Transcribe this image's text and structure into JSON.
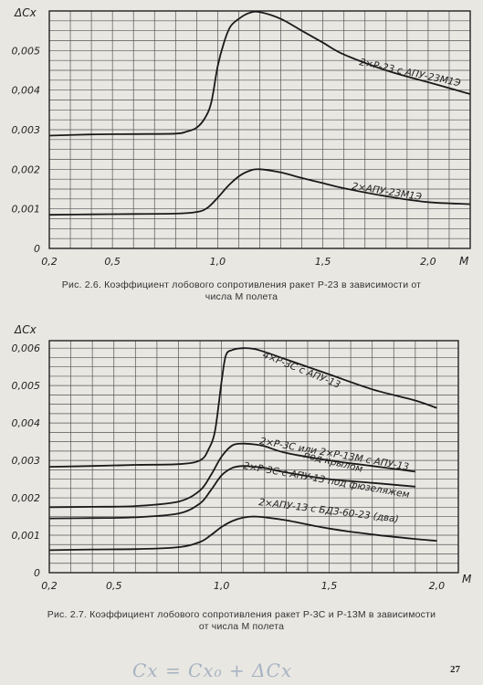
{
  "chart_data": [
    {
      "type": "line",
      "title": "Рис. 2.6. Коэффициент лобового сопротивления ракет Р-23 в зависимости от числа М полета",
      "ylabel": "ΔCx",
      "xlabel": "M",
      "xlim": [
        0.2,
        2.2
      ],
      "ylim": [
        0,
        0.006
      ],
      "x_ticks": [
        "0,2",
        "0,5",
        "1,0",
        "1,5",
        "2,0"
      ],
      "x_tick_values": [
        0.2,
        0.5,
        1.0,
        1.5,
        2.0
      ],
      "y_ticks": [
        "0",
        "0,001",
        "0,002",
        "0,003",
        "0,004",
        "0,005"
      ],
      "y_tick_values": [
        0,
        0.001,
        0.002,
        0.003,
        0.004,
        0.005
      ],
      "grid": true,
      "series": [
        {
          "name": "2×Р-23 с АПУ-23М1Э",
          "x": [
            0.2,
            0.4,
            0.6,
            0.8,
            0.85,
            0.9,
            0.94,
            0.97,
            1.0,
            1.03,
            1.06,
            1.1,
            1.15,
            1.2,
            1.3,
            1.4,
            1.5,
            1.6,
            1.8,
            2.0,
            2.2
          ],
          "y": [
            0.00285,
            0.00288,
            0.00289,
            0.0029,
            0.00295,
            0.00305,
            0.0033,
            0.0037,
            0.0046,
            0.0052,
            0.0056,
            0.0058,
            0.00595,
            0.00597,
            0.0058,
            0.0055,
            0.0052,
            0.0049,
            0.0045,
            0.0042,
            0.0039
          ]
        },
        {
          "name": "2×АПУ-23М1Э",
          "x": [
            0.2,
            0.4,
            0.6,
            0.8,
            0.9,
            0.95,
            1.0,
            1.05,
            1.1,
            1.15,
            1.2,
            1.3,
            1.4,
            1.5,
            1.6,
            1.8,
            2.0,
            2.2
          ],
          "y": [
            0.00085,
            0.00086,
            0.00087,
            0.00088,
            0.00092,
            0.00102,
            0.00128,
            0.00158,
            0.00182,
            0.00196,
            0.002,
            0.00192,
            0.00178,
            0.00165,
            0.00152,
            0.00132,
            0.00117,
            0.00112
          ]
        }
      ],
      "annotations": [
        "2×Р-23 с АПУ-23М1Э",
        "2×АПУ-23М1Э"
      ]
    },
    {
      "type": "line",
      "title": "Рис. 2.7. Коэффициент лобового сопротивления ракет Р-3С и Р-13М в зависимости от числа М полета",
      "ylabel": "ΔCx",
      "xlabel": "M",
      "xlim": [
        0.2,
        2.1
      ],
      "ylim": [
        0,
        0.0062
      ],
      "x_ticks": [
        "0,2",
        "0,5",
        "1,0",
        "1,5",
        "2,0"
      ],
      "x_tick_values": [
        0.2,
        0.5,
        1.0,
        1.5,
        2.0
      ],
      "y_ticks": [
        "0",
        "0,001",
        "0,002",
        "0,003",
        "0,004",
        "0,005",
        "0,006"
      ],
      "y_tick_values": [
        0,
        0.001,
        0.002,
        0.003,
        0.004,
        0.005,
        0.006
      ],
      "grid": true,
      "series": [
        {
          "name": "4×Р-3С с АПУ-13",
          "x": [
            0.2,
            0.4,
            0.6,
            0.8,
            0.9,
            0.94,
            0.97,
            1.0,
            1.02,
            1.05,
            1.1,
            1.15,
            1.2,
            1.3,
            1.5,
            1.7,
            1.9,
            2.0
          ],
          "y": [
            0.00283,
            0.00285,
            0.00288,
            0.0029,
            0.003,
            0.0033,
            0.0038,
            0.0051,
            0.0058,
            0.00595,
            0.006,
            0.00598,
            0.0059,
            0.0057,
            0.0053,
            0.0049,
            0.0046,
            0.0044
          ]
        },
        {
          "name": "2×Р-3С или 2×Р-13М с АПУ-13 под крылом",
          "x": [
            0.2,
            0.4,
            0.6,
            0.8,
            0.9,
            0.95,
            1.0,
            1.05,
            1.1,
            1.15,
            1.2,
            1.3,
            1.5,
            1.7,
            1.9
          ],
          "y": [
            0.00175,
            0.00176,
            0.00178,
            0.0019,
            0.0022,
            0.0026,
            0.0031,
            0.0034,
            0.00345,
            0.00343,
            0.00338,
            0.0032,
            0.003,
            0.00285,
            0.0027
          ]
        },
        {
          "name": "2×Р-3С с АПУ-13 под фюзеляжем",
          "x": [
            0.2,
            0.4,
            0.6,
            0.8,
            0.9,
            0.95,
            1.0,
            1.05,
            1.1,
            1.15,
            1.2,
            1.3,
            1.5,
            1.7,
            1.9
          ],
          "y": [
            0.00145,
            0.00146,
            0.00148,
            0.00158,
            0.00185,
            0.0022,
            0.0026,
            0.0028,
            0.00285,
            0.00283,
            0.0028,
            0.00268,
            0.0025,
            0.0024,
            0.0023
          ]
        },
        {
          "name": "2×АПУ-13 с БДЗ-60-23 (два)",
          "x": [
            0.2,
            0.4,
            0.6,
            0.8,
            0.9,
            0.95,
            1.0,
            1.05,
            1.1,
            1.15,
            1.2,
            1.3,
            1.5,
            1.7,
            1.9,
            2.0
          ],
          "y": [
            0.0006,
            0.00062,
            0.00063,
            0.00068,
            0.00082,
            0.001,
            0.00122,
            0.00138,
            0.00147,
            0.0015,
            0.00148,
            0.0014,
            0.00118,
            0.00102,
            0.0009,
            0.00085
          ]
        }
      ],
      "annotations": [
        "4×Р-3С с АПУ-13",
        "2×Р-3С или 2×Р-13М с АПУ-13",
        "под крылом",
        "2×Р-3С с АПУ-13 под фюзеляжем",
        "2×АПУ-13 с БДЗ-60-23 (два)"
      ]
    }
  ],
  "captions": {
    "fig26_line1": "Рис. 2.6. Коэффициент лобового сопротивления ракет Р-23 в зависимости от",
    "fig26_line2": "числа М полета",
    "fig27_line1": "Рис. 2.7. Коэффициент лобового сопротивления ракет Р-3С и Р-13М в зависимости",
    "fig27_line2": "от числа М полета"
  },
  "page_number": "27",
  "handwritten_note": "Cx = Cx₀ + ΔCx"
}
